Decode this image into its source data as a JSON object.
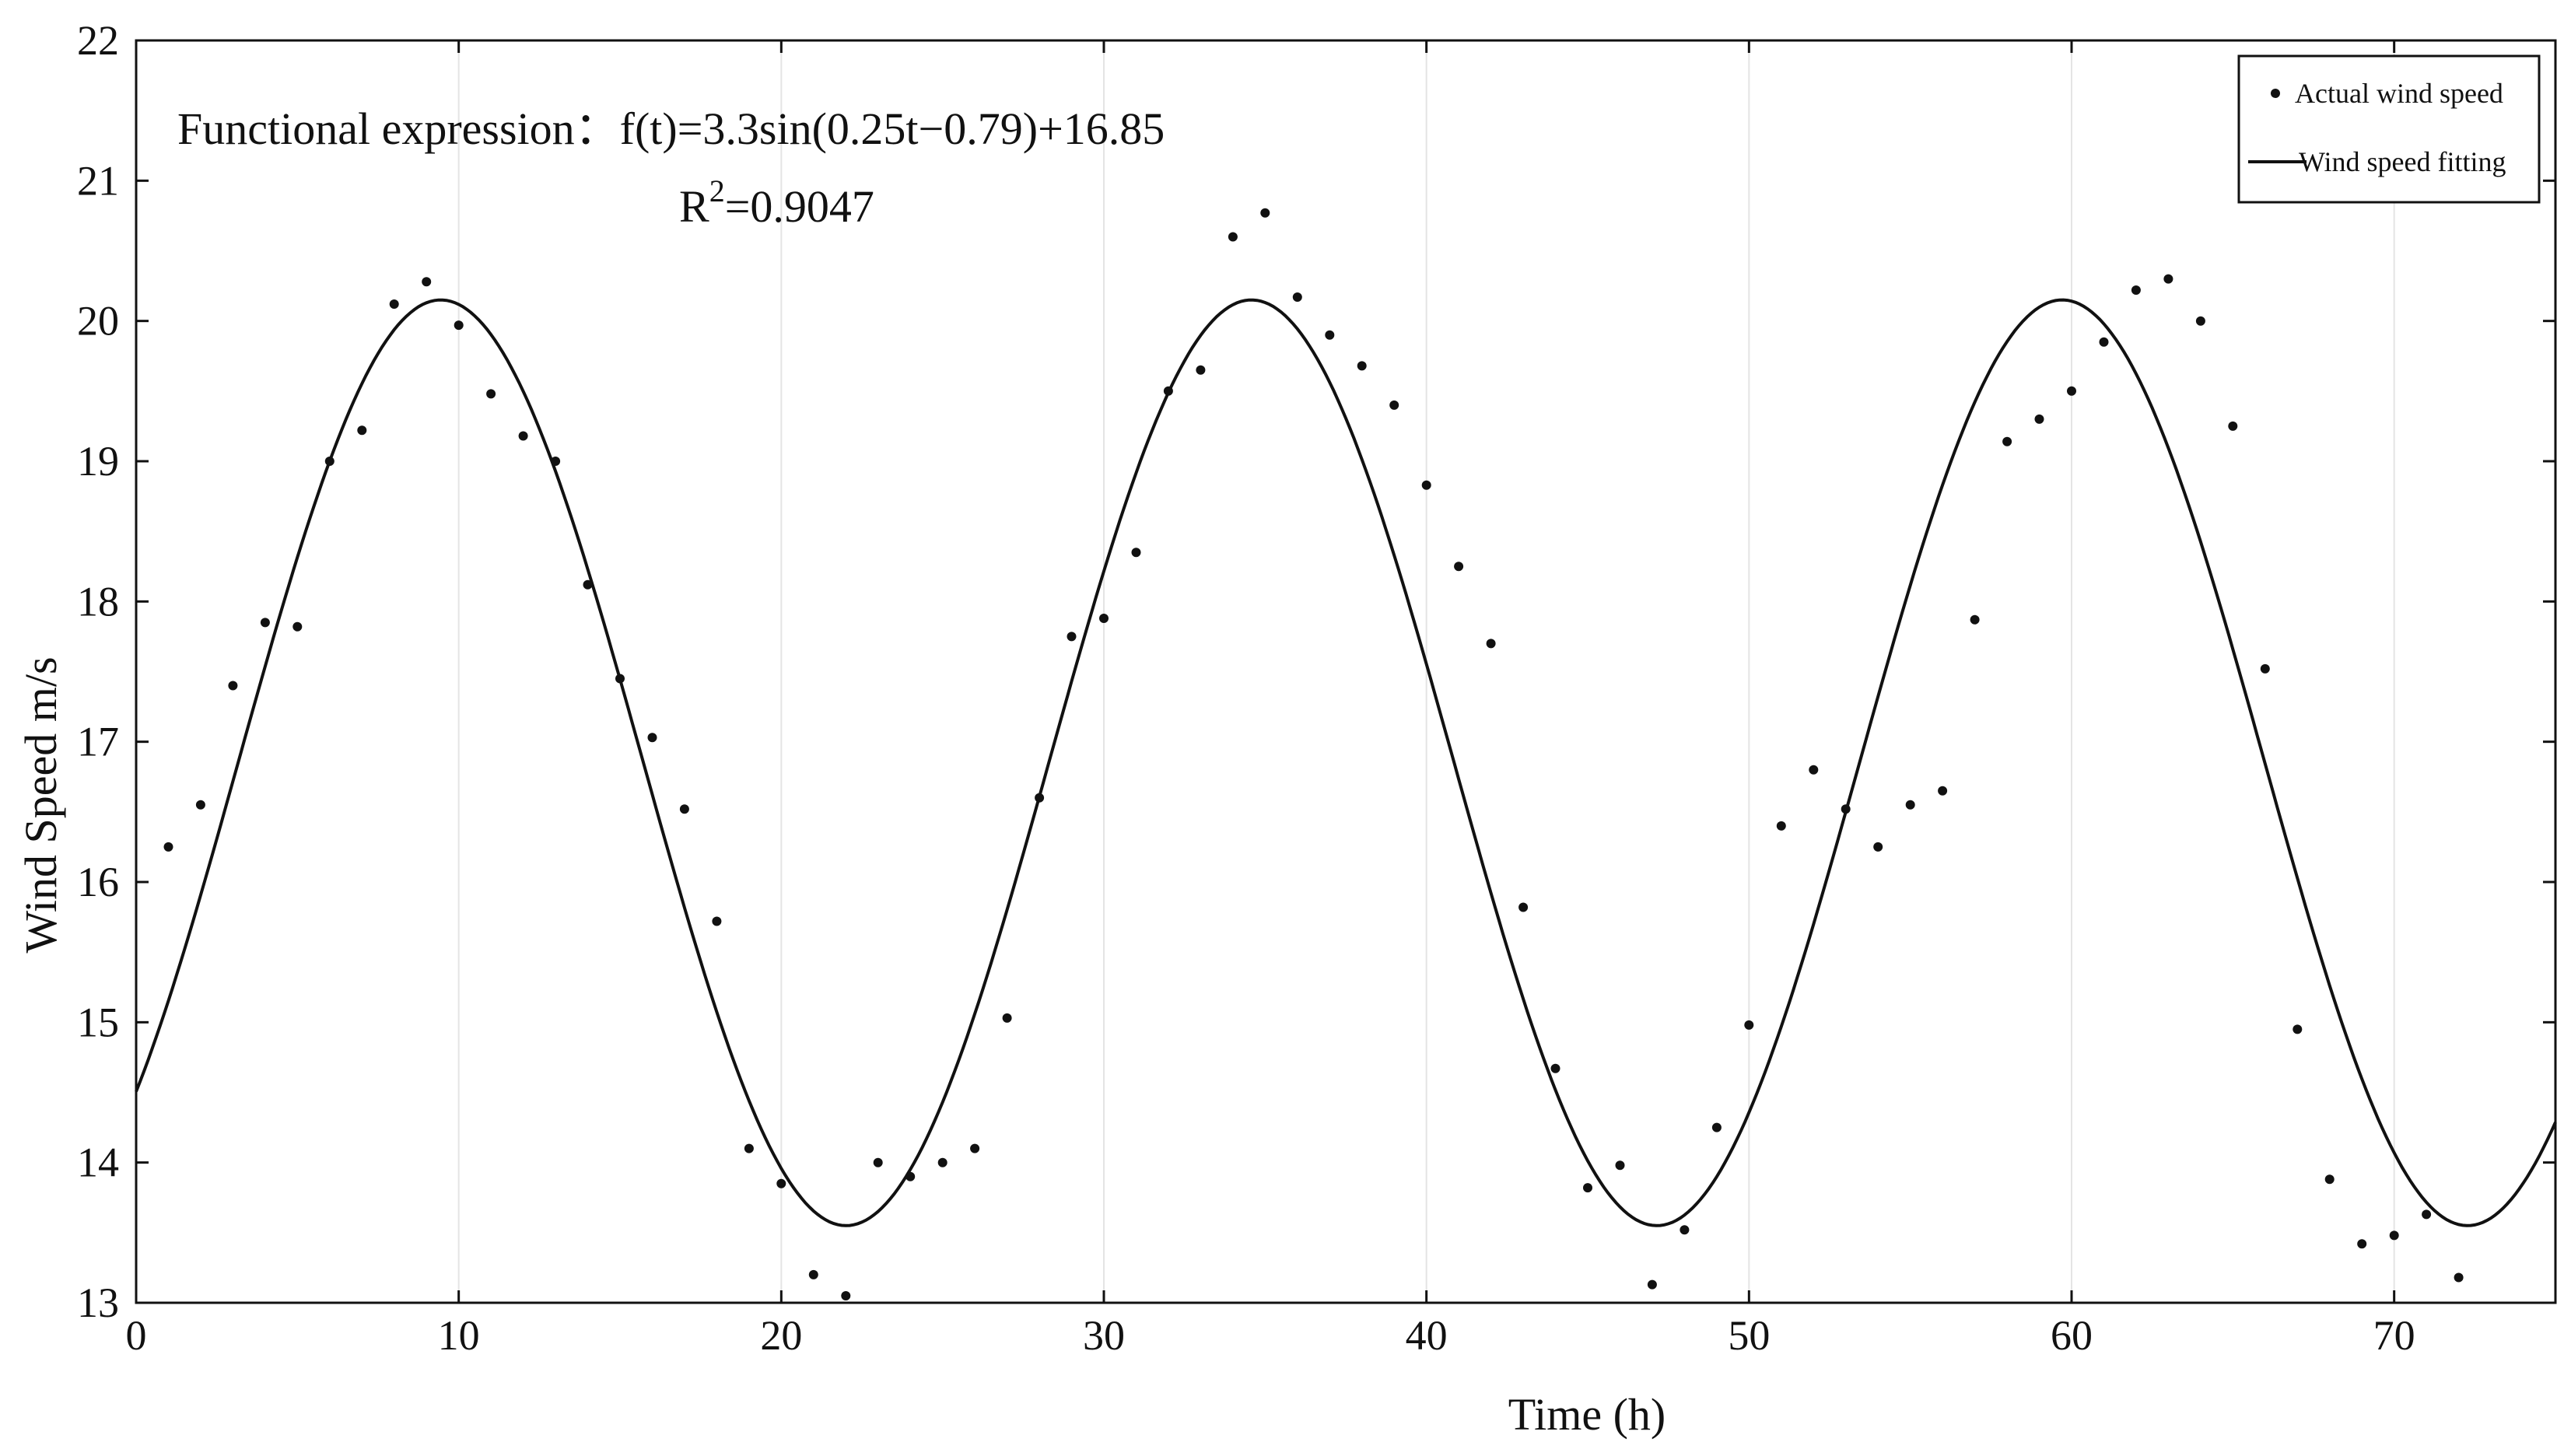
{
  "chart_data": {
    "type": "scatter",
    "title": "",
    "xlabel": "Time (h)",
    "ylabel": "Wind Speed m/s",
    "xlim": [
      0,
      75
    ],
    "ylim": [
      13,
      22
    ],
    "xticks": [
      0,
      10,
      20,
      30,
      40,
      50,
      60,
      70
    ],
    "yticks": [
      13,
      14,
      15,
      16,
      17,
      18,
      19,
      20,
      21,
      22
    ],
    "grid": true,
    "legend_position": "top-right",
    "annotation": {
      "expression_label": "Functional expression：",
      "expression": "f(t)=3.3sin(0.25t−0.79)+16.85",
      "r2_label": "R",
      "r2_exponent": "2",
      "r2_value": "=0.9047"
    },
    "series": [
      {
        "name": "Actual wind speed",
        "kind": "scatter",
        "color": "#111111",
        "x": [
          1,
          2,
          3,
          4,
          5,
          6,
          7,
          8,
          9,
          10,
          11,
          12,
          13,
          14,
          15,
          16,
          17,
          18,
          19,
          20,
          21,
          22,
          23,
          24,
          25,
          26,
          27,
          28,
          29,
          30,
          31,
          32,
          33,
          34,
          35,
          36,
          37,
          38,
          39,
          40,
          41,
          42,
          43,
          44,
          45,
          46,
          47,
          48,
          49,
          50,
          51,
          52,
          53,
          54,
          55,
          56,
          57,
          58,
          59,
          60,
          61,
          62,
          63,
          64,
          65,
          66,
          67,
          68,
          69,
          70,
          71,
          72
        ],
        "y": [
          16.25,
          16.55,
          17.4,
          17.85,
          17.82,
          19.0,
          19.22,
          20.12,
          20.28,
          19.97,
          19.48,
          19.18,
          19.0,
          18.12,
          17.45,
          17.03,
          16.52,
          15.72,
          14.1,
          13.85,
          13.2,
          13.05,
          14.0,
          13.9,
          14.0,
          14.1,
          15.03,
          16.6,
          17.75,
          17.88,
          18.35,
          19.5,
          19.65,
          20.6,
          20.77,
          20.17,
          19.9,
          19.68,
          19.4,
          18.83,
          18.25,
          17.7,
          15.82,
          14.67,
          13.82,
          13.98,
          13.13,
          13.52,
          14.25,
          14.98,
          16.4,
          16.8,
          16.52,
          16.25,
          16.55,
          16.65,
          17.87,
          19.14,
          19.3,
          19.5,
          19.85,
          20.22,
          20.3,
          20.0,
          19.25,
          17.52,
          14.95,
          13.88,
          13.42,
          13.48,
          13.63,
          13.18
        ]
      },
      {
        "name": "Wind speed fitting",
        "kind": "line",
        "color": "#111111",
        "function": {
          "amplitude": 3.3,
          "frequency": 0.25,
          "phase": -0.79,
          "offset": 16.85
        }
      }
    ]
  }
}
